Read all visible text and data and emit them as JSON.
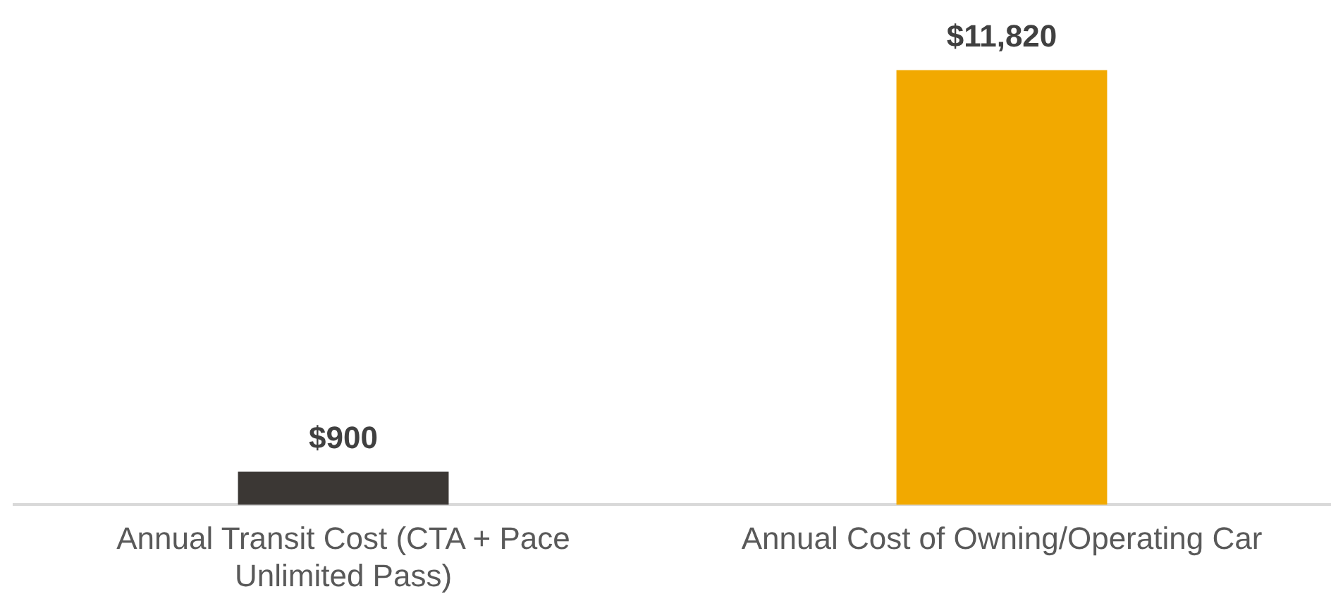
{
  "chart_data": {
    "type": "bar",
    "categories": [
      "Annual Transit Cost (CTA + Pace Unlimited Pass)",
      "Annual Cost of Owning/Operating Car"
    ],
    "values": [
      900,
      11820
    ],
    "colors": [
      "#3b3734",
      "#f2a900"
    ],
    "value_labels": [
      "$900",
      "$11,820"
    ],
    "grid": false,
    "legend": false
  }
}
